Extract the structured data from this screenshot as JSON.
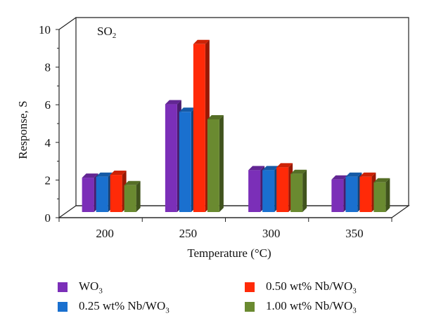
{
  "chart_data": {
    "type": "bar",
    "annotation": "SO2",
    "xlabel": "Temperature (°C)",
    "ylabel": "Response, S",
    "categories": [
      "200",
      "250",
      "300",
      "350"
    ],
    "ylim": [
      0,
      10
    ],
    "yticks": [
      0,
      2,
      4,
      6,
      8,
      10
    ],
    "series": [
      {
        "name": "WO3",
        "color": "#7b2fb8",
        "values": [
          1.9,
          5.8,
          2.3,
          1.8
        ]
      },
      {
        "name": "0.25 wt% Nb/WO3",
        "color": "#1a70cf",
        "values": [
          1.95,
          5.4,
          2.3,
          1.95
        ]
      },
      {
        "name": "0.50 wt% Nb/WO3",
        "color": "#ff2a08",
        "values": [
          2.05,
          9.0,
          2.45,
          1.95
        ]
      },
      {
        "name": "1.00 wt% Nb/WO3",
        "color": "#6a8a30",
        "values": [
          1.5,
          5.0,
          2.1,
          1.65
        ]
      }
    ]
  }
}
